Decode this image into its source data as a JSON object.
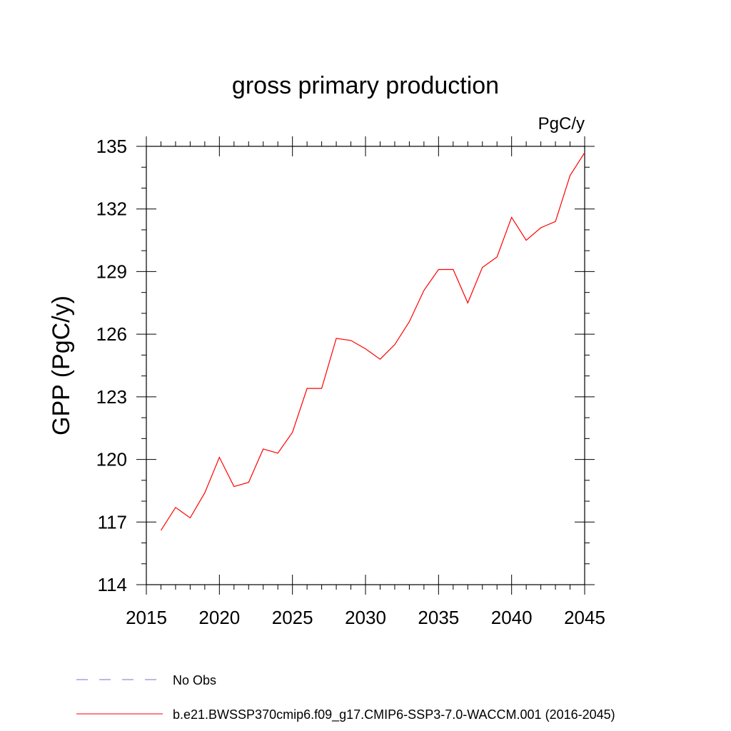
{
  "chart_data": {
    "type": "line",
    "title": "gross primary production",
    "units": "PgC/y",
    "ylabel": "GPP  (PgC/y)",
    "xlabel": "",
    "xlim": [
      2015,
      2045
    ],
    "ylim": [
      114,
      135
    ],
    "xticks": [
      2015,
      2020,
      2025,
      2030,
      2035,
      2040,
      2045
    ],
    "yticks": [
      114,
      117,
      120,
      123,
      126,
      129,
      132,
      135
    ],
    "x": [
      2016,
      2017,
      2018,
      2019,
      2020,
      2021,
      2022,
      2023,
      2024,
      2025,
      2026,
      2027,
      2028,
      2029,
      2030,
      2031,
      2032,
      2033,
      2034,
      2035,
      2036,
      2037,
      2038,
      2039,
      2040,
      2041,
      2042,
      2043,
      2044,
      2045
    ],
    "series": [
      {
        "name": "b.e21.BWSSP370cmip6.f09_g17.CMIP6-SSP3-7.0-WACCM.001 (2016-2045)",
        "color": "#ff0000",
        "values": [
          116.6,
          117.7,
          117.2,
          118.4,
          120.1,
          118.7,
          118.9,
          120.5,
          120.3,
          121.3,
          123.4,
          123.4,
          125.8,
          125.7,
          125.3,
          124.8,
          125.5,
          126.6,
          128.1,
          129.1,
          129.1,
          127.5,
          129.2,
          129.7,
          131.6,
          130.5,
          131.1,
          131.4,
          133.6,
          134.7
        ]
      }
    ],
    "legend": [
      {
        "label": "No Obs",
        "color": "#7b6fcf",
        "style": "dashed"
      },
      {
        "label": "b.e21.BWSSP370cmip6.f09_g17.CMIP6-SSP3-7.0-WACCM.001 (2016-2045)",
        "color": "#ff0000",
        "style": "solid"
      }
    ],
    "legend_position": "bottom"
  }
}
